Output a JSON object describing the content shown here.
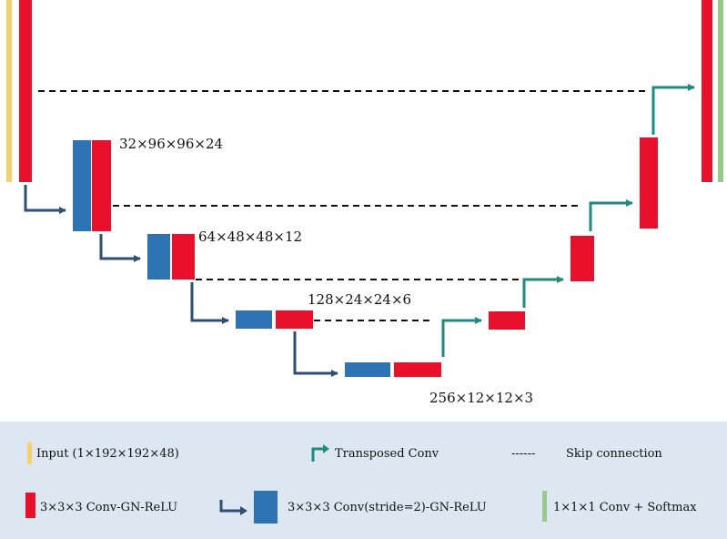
{
  "colors": {
    "input": "#f7cf6b",
    "conv": "#e8102a",
    "strided": "#2e74b5",
    "transposed_arrow": "#1f8a80",
    "down_arrow": "#2f4e73",
    "softmax": "#96c98a",
    "skip": "#111111"
  },
  "labels": {
    "level1": "32×96×96×24",
    "level2": "64×48×48×12",
    "level3": "128×24×24×6",
    "level4": "256×12×12×3"
  },
  "legend": {
    "input": "Input (1×192×192×48)",
    "transposed": "Transposed Conv",
    "skip_dashes": "------",
    "skip": "Skip connection",
    "conv": "3×3×3 Conv-GN-ReLU",
    "strided": "3×3×3 Conv(stride=2)-GN-ReLU",
    "softmax": "1×1×1 Conv + Softmax"
  }
}
